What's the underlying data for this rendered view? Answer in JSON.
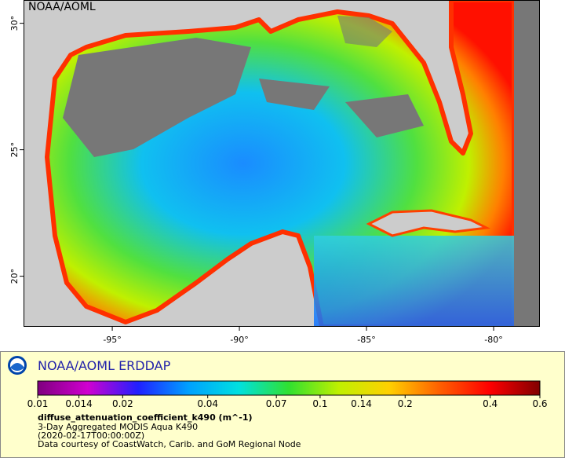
{
  "map": {
    "watermark": "NOAA/AOML",
    "xlim": [
      -98.49,
      -78.18
    ],
    "ylim": [
      18,
      30.92
    ],
    "lon_ticks": [
      {
        "value": -95,
        "label": "-95°"
      },
      {
        "value": -90,
        "label": "-90°"
      },
      {
        "value": -85,
        "label": "-85°"
      },
      {
        "value": -80,
        "label": "-80°"
      }
    ],
    "lat_ticks": [
      {
        "value": 20,
        "label": "20°"
      },
      {
        "value": 25,
        "label": "25°"
      },
      {
        "value": 30,
        "label": "30°"
      }
    ]
  },
  "legend": {
    "title": "NOAA/AOML ERDDAP",
    "colorbar": {
      "scale": "log",
      "range": [
        0.01,
        0.6
      ],
      "ticks": [
        0.01,
        0.014,
        0.02,
        0.04,
        0.07,
        0.1,
        0.14,
        0.2,
        0.4,
        0.6
      ],
      "colors": [
        "#7f007f",
        "#d000d0",
        "#2020ff",
        "#00a0ff",
        "#00e0e0",
        "#30e030",
        "#c0f000",
        "#ffd000",
        "#ff6000",
        "#ff0000",
        "#800000"
      ]
    },
    "variable": "diffuse_attenuation_coefficient_k490 (m^-1)",
    "lines": [
      "3-Day Aggregated MODIS Aqua K490",
      "(2020-02-17T00:00:00Z)",
      "Data courtesy of CoastWatch, Carib. and GoM Regional Node"
    ]
  }
}
